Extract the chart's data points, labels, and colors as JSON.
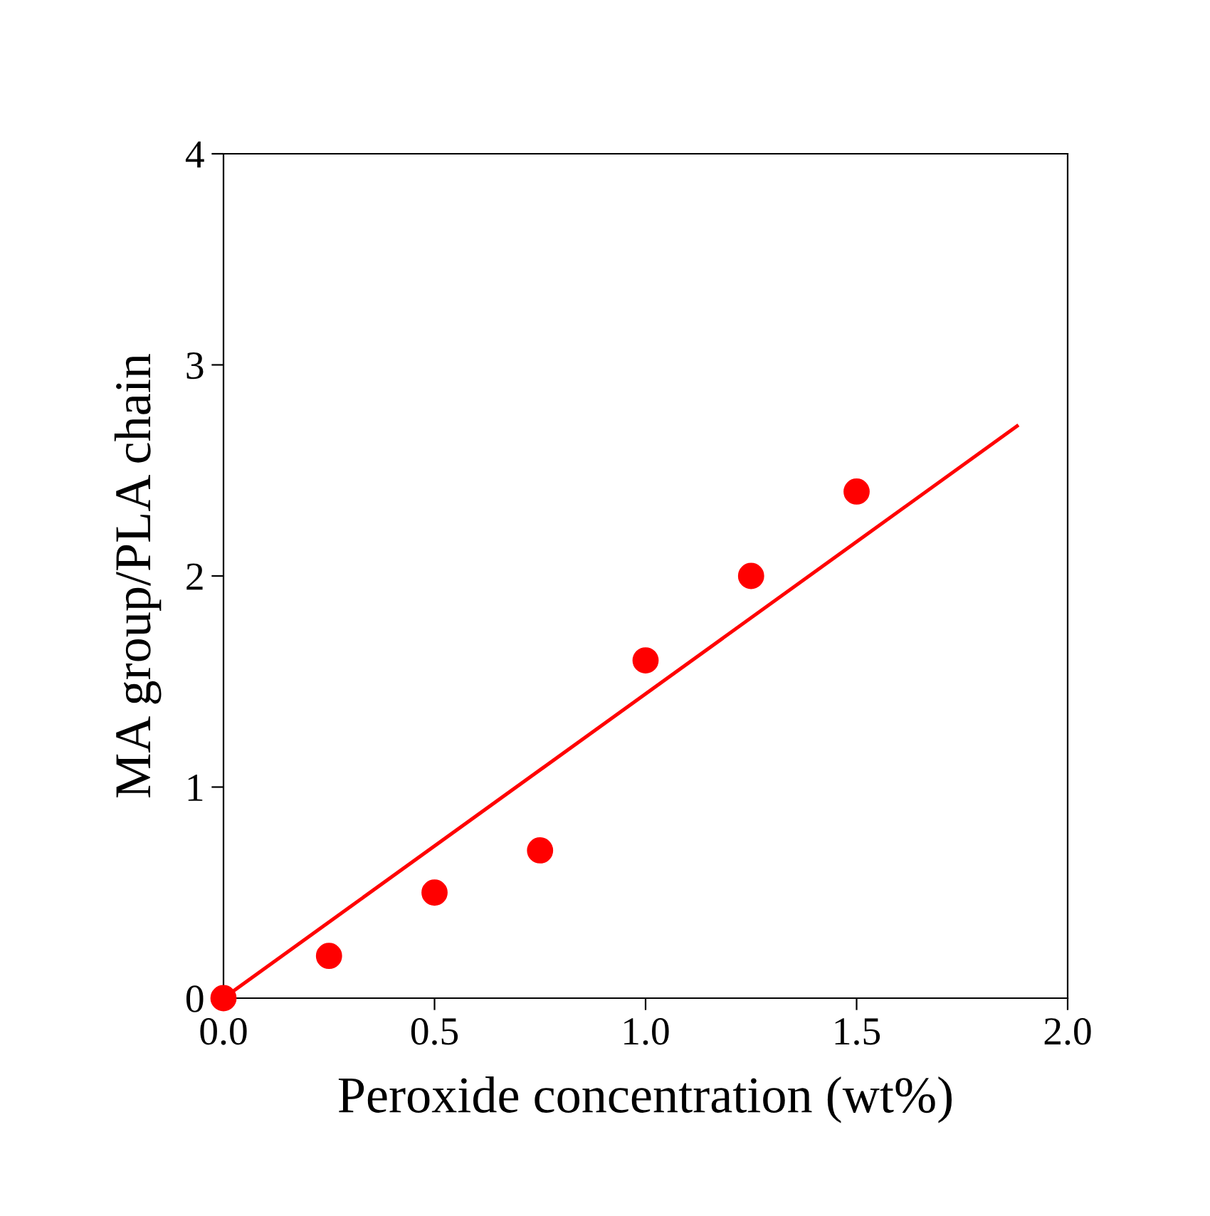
{
  "chart_data": {
    "type": "scatter",
    "xlabel": "Peroxide concentration (wt%)",
    "ylabel": "MA group/PLA chain",
    "xlim": [
      0,
      2
    ],
    "ylim": [
      0,
      4
    ],
    "xticks": [
      {
        "value": 0,
        "label": "0.0"
      },
      {
        "value": 0.5,
        "label": "0.5"
      },
      {
        "value": 1,
        "label": "1.0"
      },
      {
        "value": 1.5,
        "label": "1.5"
      },
      {
        "value": 2,
        "label": "2.0"
      }
    ],
    "yticks": [
      0,
      1,
      2,
      3,
      4
    ],
    "grid": false,
    "legend": false,
    "series": [
      {
        "marker": "circle",
        "color": "#ff0000",
        "x": [
          0,
          0.25,
          0.5,
          0.75,
          1.0,
          1.25,
          1.5
        ],
        "values": [
          0,
          0.2,
          0.5,
          0.7,
          1.6,
          2.0,
          2.4
        ]
      },
      {
        "type": "line",
        "color": "#ff0000",
        "x": [
          0,
          1.88
        ],
        "values": [
          0,
          2.71
        ],
        "marker": "none",
        "line_style": "solid"
      }
    ]
  }
}
